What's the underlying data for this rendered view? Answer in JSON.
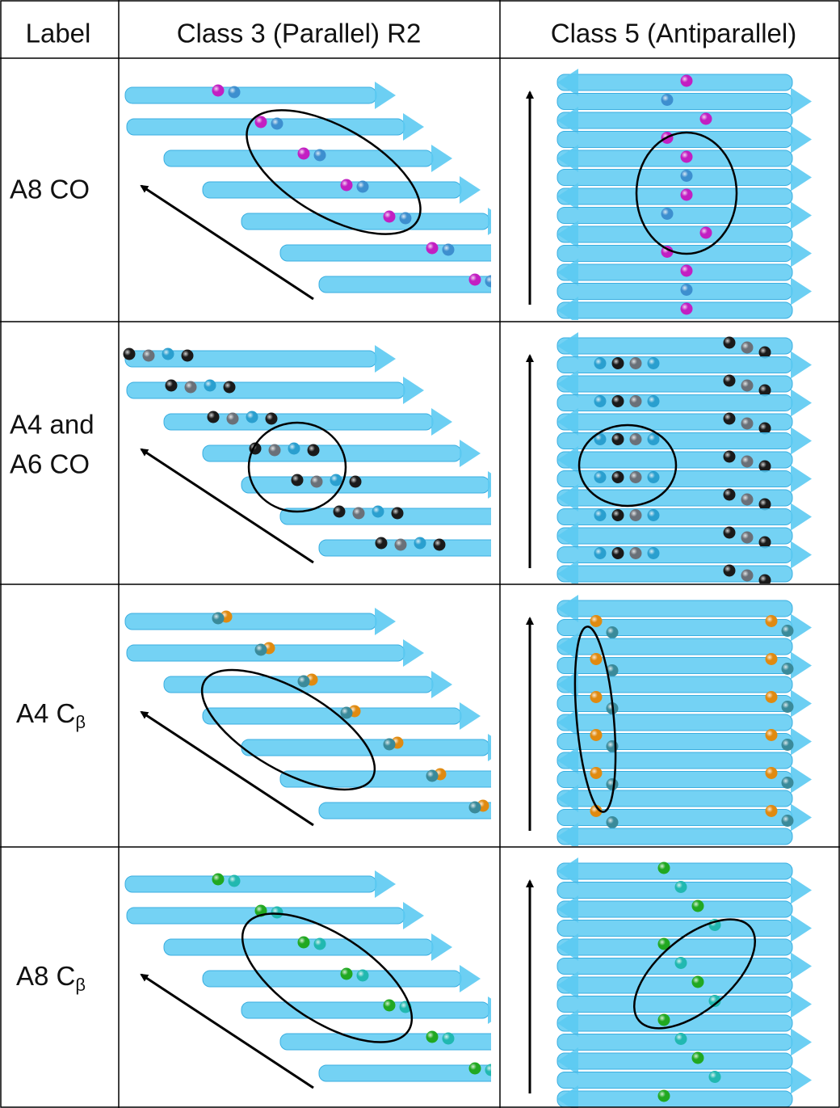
{
  "header": [
    "Label",
    "Class 3 (Parallel) R2",
    "Class 5 (Antiparallel)"
  ],
  "rows": [
    {
      "label": [
        "A8 CO"
      ]
    },
    {
      "label": [
        "A4 and",
        "A6 CO"
      ]
    },
    {
      "label": [
        "A4 C"
      ],
      "sub": "β"
    },
    {
      "label": [
        "A8 C"
      ],
      "sub": "β"
    }
  ]
}
